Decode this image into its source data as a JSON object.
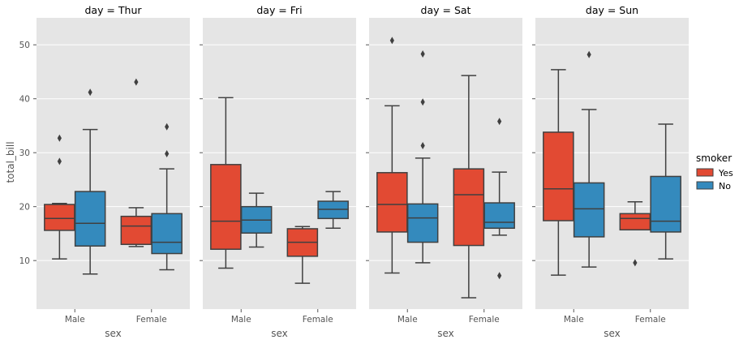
{
  "chart_data": {
    "type": "box",
    "ylabel": "total_bill",
    "xlabel": "sex",
    "ylim": [
      1,
      55
    ],
    "yticks": [
      10,
      20,
      30,
      40,
      50
    ],
    "grid": true,
    "legend": {
      "title": "smoker",
      "placement": "right",
      "entries": [
        {
          "label": "Yes",
          "color": "#e24a33"
        },
        {
          "label": "No",
          "color": "#348abd"
        }
      ]
    },
    "categories": [
      "Male",
      "Female"
    ],
    "hue_order": [
      "Yes",
      "No"
    ],
    "colors": {
      "Yes": "#e24a33",
      "No": "#348abd"
    },
    "panels": [
      {
        "title": "day = Thur",
        "boxes": [
          {
            "sex": "Male",
            "smoker": "Yes",
            "whislo": 10.3,
            "q1": 15.6,
            "med": 17.8,
            "q3": 20.4,
            "whishi": 20.6,
            "fliers": [
              28.4,
              32.7
            ]
          },
          {
            "sex": "Male",
            "smoker": "No",
            "whislo": 7.5,
            "q1": 12.7,
            "med": 16.9,
            "q3": 22.8,
            "whishi": 34.3,
            "fliers": [
              41.2
            ]
          },
          {
            "sex": "Female",
            "smoker": "Yes",
            "whislo": 12.6,
            "q1": 13.0,
            "med": 16.4,
            "q3": 18.2,
            "whishi": 19.8,
            "fliers": [
              43.1
            ]
          },
          {
            "sex": "Female",
            "smoker": "No",
            "whislo": 8.3,
            "q1": 11.3,
            "med": 13.4,
            "q3": 18.7,
            "whishi": 27.0,
            "fliers": [
              29.8,
              34.8
            ]
          }
        ]
      },
      {
        "title": "day = Fri",
        "boxes": [
          {
            "sex": "Male",
            "smoker": "Yes",
            "whislo": 8.6,
            "q1": 12.1,
            "med": 17.3,
            "q3": 27.8,
            "whishi": 40.2,
            "fliers": []
          },
          {
            "sex": "Male",
            "smoker": "No",
            "whislo": 12.5,
            "q1": 15.1,
            "med": 17.5,
            "q3": 20.0,
            "whishi": 22.5,
            "fliers": []
          },
          {
            "sex": "Female",
            "smoker": "Yes",
            "whislo": 5.8,
            "q1": 10.8,
            "med": 13.4,
            "q3": 15.9,
            "whishi": 16.3,
            "fliers": []
          },
          {
            "sex": "Female",
            "smoker": "No",
            "whislo": 16.0,
            "q1": 17.8,
            "med": 19.5,
            "q3": 21.0,
            "whishi": 22.8,
            "fliers": []
          }
        ]
      },
      {
        "title": "day = Sat",
        "boxes": [
          {
            "sex": "Male",
            "smoker": "Yes",
            "whislo": 7.7,
            "q1": 15.3,
            "med": 20.4,
            "q3": 26.3,
            "whishi": 38.7,
            "fliers": [
              50.8
            ]
          },
          {
            "sex": "Male",
            "smoker": "No",
            "whislo": 9.6,
            "q1": 13.4,
            "med": 17.9,
            "q3": 20.5,
            "whishi": 29.0,
            "fliers": [
              31.3,
              39.4,
              48.3
            ]
          },
          {
            "sex": "Female",
            "smoker": "Yes",
            "whislo": 3.1,
            "q1": 12.8,
            "med": 22.2,
            "q3": 27.0,
            "whishi": 44.3,
            "fliers": []
          },
          {
            "sex": "Female",
            "smoker": "No",
            "whislo": 14.7,
            "q1": 16.0,
            "med": 17.1,
            "q3": 20.7,
            "whishi": 26.4,
            "fliers": [
              7.2,
              35.8
            ]
          }
        ]
      },
      {
        "title": "day = Sun",
        "boxes": [
          {
            "sex": "Male",
            "smoker": "Yes",
            "whislo": 7.3,
            "q1": 17.4,
            "med": 23.3,
            "q3": 33.8,
            "whishi": 45.4,
            "fliers": []
          },
          {
            "sex": "Male",
            "smoker": "No",
            "whislo": 8.8,
            "q1": 14.4,
            "med": 19.6,
            "q3": 24.4,
            "whishi": 38.0,
            "fliers": [
              48.2
            ]
          },
          {
            "sex": "Female",
            "smoker": "Yes",
            "whislo": 15.7,
            "q1": 15.7,
            "med": 17.8,
            "q3": 18.7,
            "whishi": 20.9,
            "fliers": [
              9.6
            ]
          },
          {
            "sex": "Female",
            "smoker": "No",
            "whislo": 10.3,
            "q1": 15.3,
            "med": 17.3,
            "q3": 25.6,
            "whishi": 35.3,
            "fliers": []
          }
        ]
      }
    ]
  }
}
